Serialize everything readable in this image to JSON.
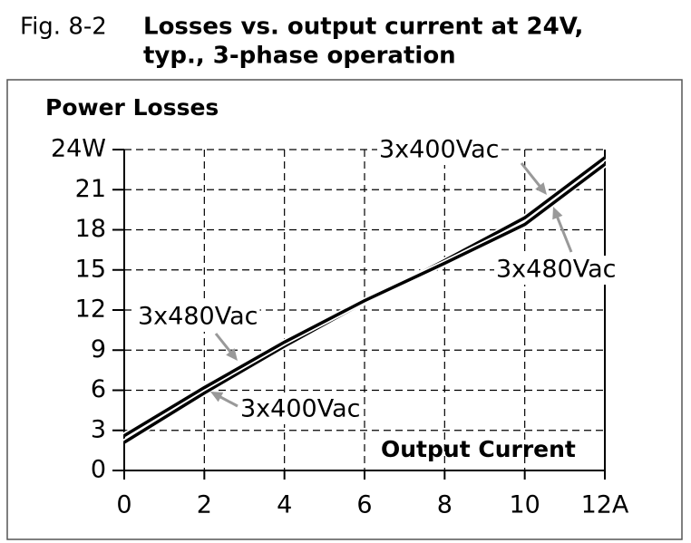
{
  "figure_label": "Fig. 8-2",
  "chart_data": {
    "type": "line",
    "title": "Losses vs. output current at 24V,",
    "subtitle": "typ., 3-phase operation",
    "y_label": "Power Losses",
    "x_label": "Output Current",
    "xlim": [
      0,
      12
    ],
    "ylim": [
      0,
      24
    ],
    "xticks": [
      0,
      2,
      4,
      6,
      8,
      10,
      {
        "value": 12,
        "label": "12A"
      }
    ],
    "yticks": [
      0,
      3,
      6,
      9,
      12,
      15,
      18,
      21,
      {
        "value": 24,
        "label": "24W"
      }
    ],
    "grid": true,
    "x": [
      0,
      2,
      4,
      6,
      8,
      10,
      12
    ],
    "series": [
      {
        "name": "3x400Vac",
        "color": "#000000",
        "values": [
          2.1,
          5.8,
          9.3,
          12.6,
          15.7,
          18.9,
          23.4
        ]
      },
      {
        "name": "3x480Vac",
        "color": "#000000",
        "values": [
          2.6,
          6.2,
          9.6,
          12.7,
          15.5,
          18.4,
          22.9
        ]
      }
    ]
  }
}
